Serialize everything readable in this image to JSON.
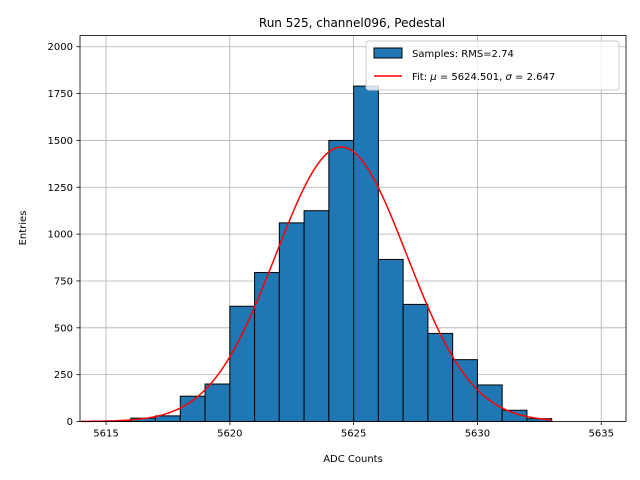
{
  "chart_data": {
    "type": "bar",
    "title": "Run 525, channel096, Pedestal",
    "xlabel": "ADC Counts",
    "ylabel": "Entries",
    "xlim": [
      5613.95,
      5636
    ],
    "ylim": [
      0,
      2060
    ],
    "xticks": [
      5615,
      5620,
      5625,
      5630,
      5635
    ],
    "yticks": [
      0,
      250,
      500,
      750,
      1000,
      1250,
      1500,
      1750,
      2000
    ],
    "grid": true,
    "legend_position": "top-right",
    "histogram": {
      "name": "Samples: RMS=2.74",
      "color": "#1f77b4",
      "bin_width": 1,
      "bin_edges_start": [
        5615,
        5616,
        5617,
        5618,
        5619,
        5620,
        5621,
        5622,
        5623,
        5624,
        5625,
        5626,
        5627,
        5628,
        5629,
        5630,
        5631,
        5632
      ],
      "counts": [
        3,
        18,
        30,
        135,
        200,
        615,
        795,
        1060,
        1125,
        1500,
        1790,
        865,
        625,
        470,
        330,
        195,
        60,
        15
      ]
    },
    "fit": {
      "label_prefix": "Fit: ",
      "mu_symbol": "μ",
      "sigma_symbol": "σ",
      "mu": "5624.501",
      "sigma": "2.647",
      "amplitude": 1465,
      "x_range": [
        5614,
        5633
      ],
      "color": "#ff0000"
    }
  }
}
